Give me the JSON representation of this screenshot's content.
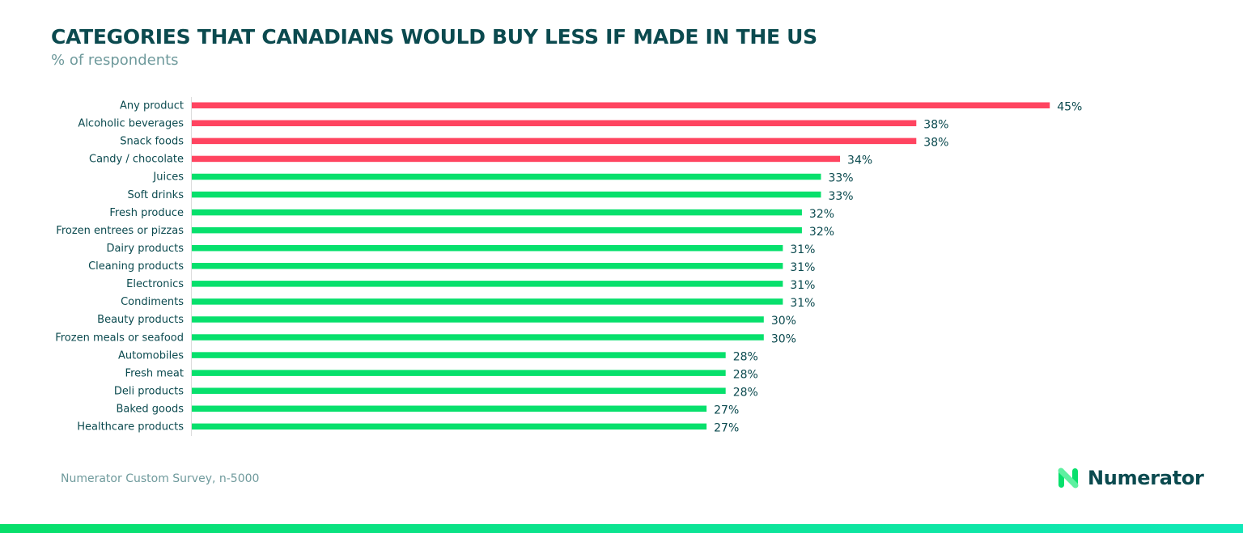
{
  "header": {
    "title": "CATEGORIES THAT CANADIANS WOULD BUY LESS IF MADE IN THE US",
    "subtitle": "% of respondents"
  },
  "footer": {
    "source": "Numerator Custom Survey, n-5000",
    "brand": "Numerator"
  },
  "colors": {
    "highlight": "#ff4460",
    "default": "#07e06c",
    "title": "#0b4a4f",
    "label": "#0b4a4f"
  },
  "chart_data": {
    "type": "bar",
    "orientation": "horizontal",
    "title": "CATEGORIES THAT CANADIANS WOULD BUY LESS IF MADE IN THE US",
    "subtitle": "% of respondents",
    "categories": [
      "Any product",
      "Alcoholic beverages",
      "Snack foods",
      "Candy / chocolate",
      "Juices",
      "Soft drinks",
      "Fresh produce",
      "Frozen entrees or pizzas",
      "Dairy products",
      "Cleaning products",
      "Electronics",
      "Condiments",
      "Beauty products",
      "Frozen meals or seafood",
      "Automobiles",
      "Fresh meat",
      "Deli products",
      "Baked goods",
      "Healthcare products"
    ],
    "values": [
      45,
      38,
      38,
      34,
      33,
      33,
      32,
      32,
      31,
      31,
      31,
      31,
      30,
      30,
      28,
      28,
      28,
      27,
      27
    ],
    "value_labels": [
      "45%",
      "38%",
      "38%",
      "34%",
      "33%",
      "33%",
      "32%",
      "32%",
      "31%",
      "31%",
      "31%",
      "31%",
      "30%",
      "30%",
      "28%",
      "28%",
      "28%",
      "27%",
      "27%"
    ],
    "highlighted": [
      true,
      true,
      true,
      true,
      false,
      false,
      false,
      false,
      false,
      false,
      false,
      false,
      false,
      false,
      false,
      false,
      false,
      false,
      false
    ],
    "xlim": [
      0,
      45.5
    ],
    "grid": false,
    "legend": "none"
  }
}
